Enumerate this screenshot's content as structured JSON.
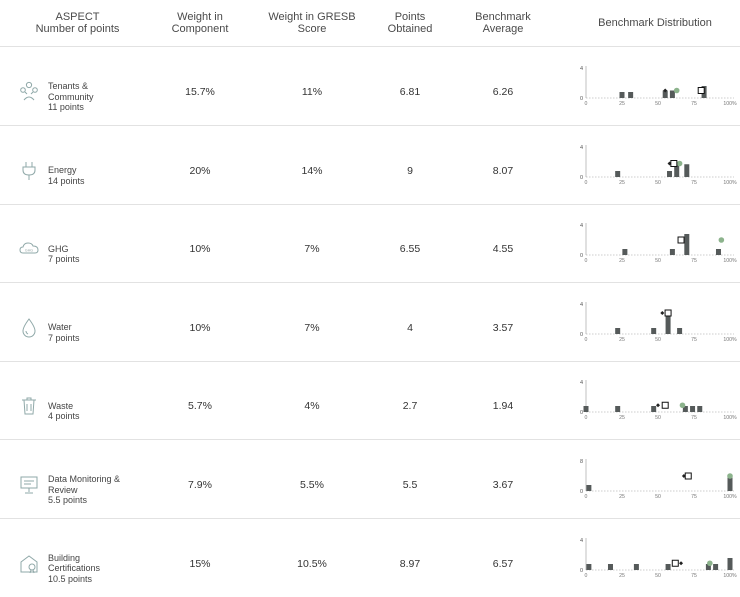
{
  "header": {
    "aspect_line1": "ASPECT",
    "aspect_line2": "Number of points",
    "weight_component_line1": "Weight in",
    "weight_component_line2": "Component",
    "weight_gresb_line1": "Weight in GRESB",
    "weight_gresb_line2": "Score",
    "points_line1": "Points",
    "points_line2": "Obtained",
    "benchmark_line1": "Benchmark",
    "benchmark_line2": "Average",
    "distribution": "Benchmark  Distribution"
  },
  "rows": [
    {
      "icon": "people-network-icon",
      "name_lines": [
        "Tenants &",
        "Community"
      ],
      "points_label": "11 points",
      "weight_component": "15.7%",
      "weight_gresb": "11%",
      "points_obtained": "6.81",
      "benchmark_average": "6.26"
    },
    {
      "icon": "plug-icon",
      "name_lines": [
        "Energy"
      ],
      "points_label": "14 points",
      "weight_component": "20%",
      "weight_gresb": "14%",
      "points_obtained": "9",
      "benchmark_average": "8.07"
    },
    {
      "icon": "cloud-ghg-icon",
      "name_lines": [
        "GHG"
      ],
      "points_label": "7 points",
      "weight_component": "10%",
      "weight_gresb": "7%",
      "points_obtained": "6.55",
      "benchmark_average": "4.55"
    },
    {
      "icon": "water-drop-icon",
      "name_lines": [
        "Water"
      ],
      "points_label": "7 points",
      "weight_component": "10%",
      "weight_gresb": "7%",
      "points_obtained": "4",
      "benchmark_average": "3.57"
    },
    {
      "icon": "waste-bin-icon",
      "name_lines": [
        "Waste"
      ],
      "points_label": "4 points",
      "weight_component": "5.7%",
      "weight_gresb": "4%",
      "points_obtained": "2.7",
      "benchmark_average": "1.94"
    },
    {
      "icon": "monitor-board-icon",
      "name_lines": [
        "Data Monitoring &",
        "Review"
      ],
      "points_label": "5.5 points",
      "weight_component": "7.9%",
      "weight_gresb": "5.5%",
      "points_obtained": "5.5",
      "benchmark_average": "3.67"
    },
    {
      "icon": "building-cert-icon",
      "name_lines": [
        "Building",
        "Certifications"
      ],
      "points_label": "10.5 points",
      "weight_component": "15%",
      "weight_gresb": "10.5%",
      "points_obtained": "8.97",
      "benchmark_average": "6.57"
    }
  ],
  "chart_data": [
    {
      "type": "bar",
      "ymax": 4,
      "yticks": [
        "0",
        "4"
      ],
      "xticks": [
        "0",
        "25",
        "50",
        "75",
        "100%"
      ],
      "bars": [
        [
          25,
          0.8
        ],
        [
          31,
          0.8
        ],
        [
          55,
          1.0
        ],
        [
          60,
          1.0
        ],
        [
          82,
          1.6
        ]
      ],
      "entity_x": 80,
      "entity_y": 1.0,
      "average_x": 63,
      "average_y": 1.0,
      "diamond_x": 55
    },
    {
      "type": "bar",
      "ymax": 4,
      "yticks": [
        "0",
        "4"
      ],
      "xticks": [
        "0",
        "25",
        "50",
        "75",
        "100%"
      ],
      "bars": [
        [
          22,
          0.8
        ],
        [
          58,
          0.8
        ],
        [
          63,
          2.0
        ],
        [
          70,
          1.7
        ]
      ],
      "entity_x": 61,
      "entity_y": 1.8,
      "average_x": 65,
      "average_y": 1.8,
      "diamond_x": 58
    },
    {
      "type": "bar",
      "ymax": 4,
      "yticks": [
        "0",
        "4"
      ],
      "xticks": [
        "0",
        "25",
        "50",
        "75",
        "100%"
      ],
      "bars": [
        [
          27,
          0.8
        ],
        [
          60,
          0.8
        ],
        [
          70,
          2.8
        ],
        [
          92,
          0.8
        ]
      ],
      "entity_x": 66,
      "entity_y": 2.0,
      "average_x": 94,
      "average_y": 2.0
    },
    {
      "type": "bar",
      "ymax": 4,
      "yticks": [
        "0",
        "4"
      ],
      "xticks": [
        "0",
        "25",
        "50",
        "75",
        "100%"
      ],
      "bars": [
        [
          22,
          0.8
        ],
        [
          47,
          0.8
        ],
        [
          57,
          2.8
        ],
        [
          65,
          0.8
        ]
      ],
      "entity_x": 57,
      "entity_y": 2.8,
      "diamond_x": 53
    },
    {
      "type": "bar",
      "ymax": 4,
      "yticks": [
        "0",
        "4"
      ],
      "xticks": [
        "0",
        "25",
        "50",
        "75",
        "100%"
      ],
      "bars": [
        [
          0,
          0.8
        ],
        [
          22,
          0.8
        ],
        [
          47,
          0.8
        ],
        [
          69,
          0.8
        ],
        [
          74,
          0.8
        ],
        [
          79,
          0.8
        ]
      ],
      "entity_x": 55,
      "entity_y": 0.9,
      "average_x": 67,
      "average_y": 0.9,
      "diamond_x": 50
    },
    {
      "type": "bar",
      "ymax": 8,
      "yticks": [
        "0",
        "8"
      ],
      "xticks": [
        "0",
        "25",
        "50",
        "75",
        "100%"
      ],
      "bars": [
        [
          2,
          1.6
        ],
        [
          100,
          3.6
        ]
      ],
      "entity_x": 71,
      "entity_y": 4.0,
      "average_x": 100,
      "average_y": 4.0,
      "diamond_x": 68
    },
    {
      "type": "bar",
      "ymax": 4,
      "yticks": [
        "0",
        "4"
      ],
      "xticks": [
        "0",
        "25",
        "50",
        "75",
        "100%"
      ],
      "bars": [
        [
          2,
          0.8
        ],
        [
          17,
          0.8
        ],
        [
          35,
          0.8
        ],
        [
          57,
          0.8
        ],
        [
          85,
          0.8
        ],
        [
          90,
          0.8
        ],
        [
          100,
          1.6
        ]
      ],
      "entity_x": 62,
      "entity_y": 0.9,
      "average_x": 86,
      "average_y": 0.9,
      "diamond_x": 66
    }
  ],
  "colors": {
    "bar": "#555a5a",
    "average": "#8cb38c",
    "line": "#e8e8e8",
    "axis": "#999999"
  }
}
